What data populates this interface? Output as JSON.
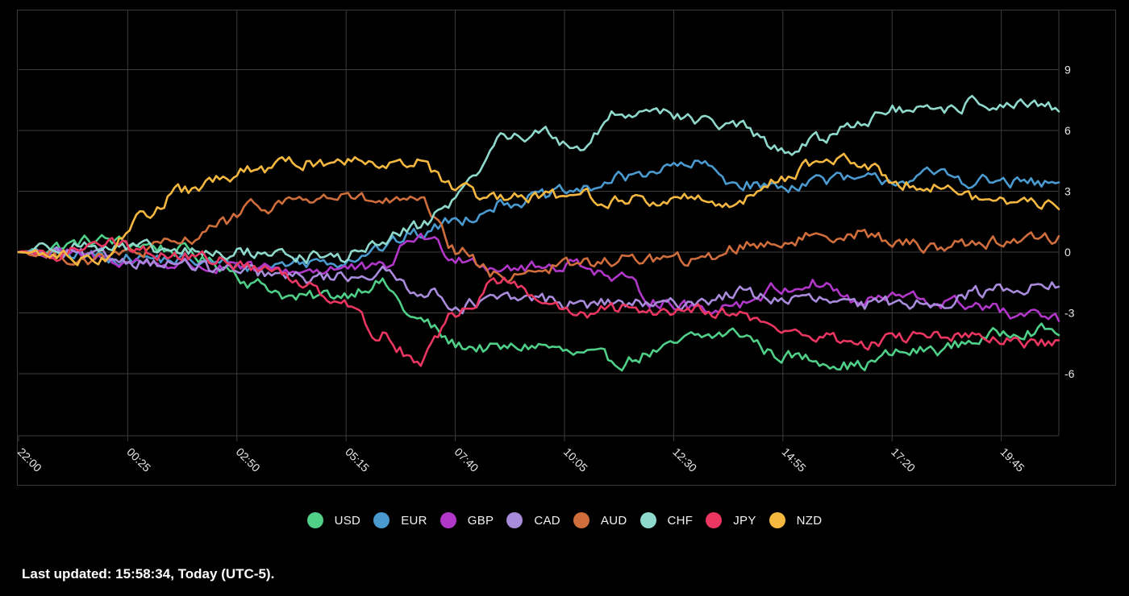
{
  "footer": {
    "text": "Last updated: 15:58:34, Today (UTC-5)."
  },
  "chart_data": {
    "type": "line",
    "x_ticks": [
      "22:00",
      "00:25",
      "02:50",
      "05:15",
      "07:40",
      "10:05",
      "12:30",
      "14:55",
      "17:20",
      "19:45"
    ],
    "y_ticks": [
      9,
      6,
      3,
      0,
      -3,
      -6
    ],
    "ylim": [
      -9,
      12
    ],
    "grid": true,
    "legend_position": "bottom-center",
    "series": [
      {
        "name": "USD",
        "color": "#4fcf87",
        "values": [
          0,
          0.3,
          0.6,
          0.4,
          0.1,
          -0.6,
          -1.6,
          -2.3,
          -2.1,
          -1.5,
          -3.4,
          -4.6,
          -4.8,
          -4.6,
          -5.1,
          -5.4,
          -4.9,
          -4.2,
          -4.0,
          -5.1,
          -5.3,
          -5.6,
          -5.0,
          -4.8,
          -4.3,
          -3.8,
          -3.9
        ]
      },
      {
        "name": "EUR",
        "color": "#4a9ad0",
        "values": [
          0,
          -0.1,
          -0.2,
          -0.3,
          -0.4,
          -0.6,
          -0.7,
          -0.5,
          -0.4,
          0.2,
          0.9,
          1.6,
          2.4,
          2.7,
          3.0,
          3.6,
          4.1,
          4.3,
          3.4,
          3.2,
          3.6,
          3.5,
          3.6,
          3.8,
          3.5,
          3.4,
          3.3
        ]
      },
      {
        "name": "GBP",
        "color": "#b137c9",
        "values": [
          0,
          -0.1,
          -0.3,
          -0.5,
          -0.6,
          -0.8,
          -0.9,
          -0.9,
          -0.8,
          -0.9,
          0.8,
          -0.2,
          -0.7,
          -0.8,
          -0.5,
          -1.4,
          -2.4,
          -2.8,
          -2.5,
          -1.8,
          -1.5,
          -2.5,
          -2.2,
          -2.5,
          -2.6,
          -3.2,
          -3.3
        ]
      },
      {
        "name": "CAD",
        "color": "#a98bdb",
        "values": [
          0,
          -0.1,
          -0.3,
          -0.4,
          -0.6,
          -0.9,
          -1.1,
          -1.3,
          -1.2,
          -1.0,
          -1.8,
          -2.6,
          -2.4,
          -2.3,
          -2.6,
          -2.5,
          -2.7,
          -2.4,
          -2.0,
          -2.3,
          -2.4,
          -2.7,
          -2.5,
          -2.4,
          -2.0,
          -1.7,
          -1.6
        ]
      },
      {
        "name": "AUD",
        "color": "#cf6e3c",
        "values": [
          0,
          -0.2,
          -0.4,
          0.0,
          0.4,
          1.4,
          2.2,
          2.6,
          2.7,
          2.5,
          2.4,
          0.0,
          -1.2,
          -0.8,
          -0.6,
          -0.4,
          -0.3,
          -0.5,
          0.3,
          0.5,
          0.8,
          1.0,
          0.4,
          0.3,
          0.5,
          0.6,
          0.7
        ]
      },
      {
        "name": "CHF",
        "color": "#8fd8cc",
        "values": [
          0,
          0.4,
          0.3,
          0.1,
          0.0,
          -0.1,
          0.0,
          -0.2,
          -0.3,
          0.4,
          1.3,
          2.7,
          5.6,
          5.9,
          5.2,
          6.8,
          7.1,
          6.4,
          6.2,
          5.0,
          5.5,
          6.5,
          7.0,
          6.8,
          7.4,
          7.2,
          7.0
        ]
      },
      {
        "name": "JPY",
        "color": "#ea3660",
        "values": [
          0,
          -0.2,
          0.7,
          0.1,
          -0.2,
          -0.4,
          -0.8,
          -1.4,
          -2.2,
          -4.0,
          -5.3,
          -3.0,
          -1.4,
          -2.3,
          -3.2,
          -2.8,
          -2.9,
          -2.7,
          -3.1,
          -3.8,
          -4.2,
          -4.5,
          -4.3,
          -4.0,
          -4.3,
          -4.5,
          -4.6
        ]
      },
      {
        "name": "NZD",
        "color": "#f4b740",
        "values": [
          0,
          -0.2,
          -0.3,
          1.6,
          2.9,
          3.5,
          4.1,
          4.4,
          4.5,
          4.6,
          4.4,
          3.0,
          2.5,
          2.7,
          2.8,
          2.6,
          2.5,
          2.7,
          2.4,
          3.7,
          4.5,
          4.4,
          3.5,
          3.3,
          2.6,
          2.5,
          2.4
        ]
      }
    ]
  }
}
